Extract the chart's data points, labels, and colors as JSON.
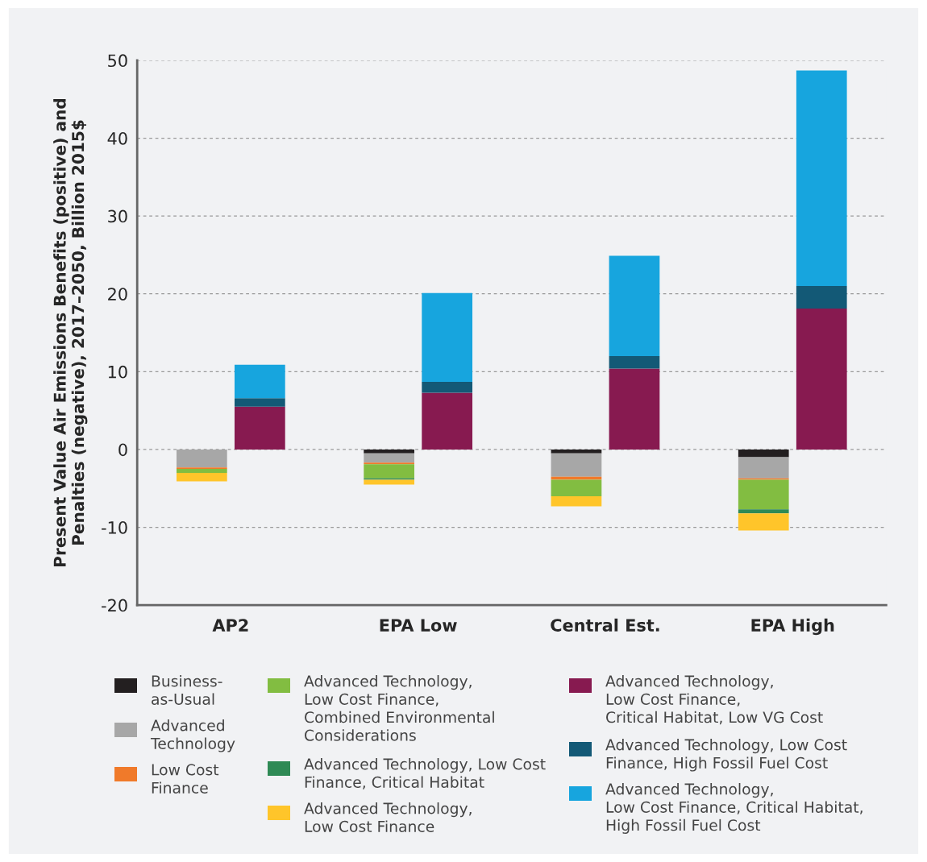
{
  "chart_data": {
    "type": "bar",
    "stacked": true,
    "ylabel": "Present Value Air Emissions Benefits (positive) and\nPenalties (negative), 2017–2050, Billion 2015$",
    "categories": [
      "AP2",
      "EPA Low",
      "Central Est.",
      "EPA High"
    ],
    "series": [
      {
        "name": "Business-\nas-Usual",
        "color": "#231f20",
        "values": [
          0,
          -0.5,
          -0.5,
          -1.0
        ]
      },
      {
        "name": "Advanced\nTechnology",
        "color": "#a7a7a7",
        "values": [
          -2.3,
          -1.2,
          -3.0,
          -2.7
        ]
      },
      {
        "name": "Low Cost\nFinance",
        "color": "#f07a2a",
        "values": [
          -0.2,
          -0.2,
          -0.4,
          -0.2
        ]
      },
      {
        "name": "Advanced Technology,\nLow Cost Finance,\nCombined Environmental\nConsiderations",
        "color": "#82bd41",
        "values": [
          -0.5,
          -1.8,
          -2.1,
          -3.8
        ]
      },
      {
        "name": "Advanced Technology, Low Cost\nFinance, Critical Habitat",
        "color": "#2f8a55",
        "values": [
          0,
          -0.2,
          0,
          -0.5
        ]
      },
      {
        "name": "Advanced Technology,\nLow Cost Finance",
        "color": "#ffc52a",
        "values": [
          -1.1,
          -0.6,
          -1.3,
          -2.2
        ]
      },
      {
        "name": "Advanced Technology,\nLow Cost Finance,\nCritical Habitat, Low VG Cost",
        "color": "#871a50",
        "values": [
          5.5,
          7.3,
          10.4,
          18.1
        ]
      },
      {
        "name": "Advanced Technology, Low Cost\nFinance, High Fossil Fuel Cost",
        "color": "#135976",
        "values": [
          1.1,
          1.4,
          1.6,
          2.9
        ]
      },
      {
        "name": "Advanced Technology,\nLow Cost Finance, Critical Habitat,\nHigh Fossil Fuel Cost",
        "color": "#17a5de",
        "values": [
          4.3,
          11.4,
          12.9,
          27.7
        ]
      }
    ],
    "ylim": [
      -20,
      50
    ],
    "yticks": [
      {
        "value": -20,
        "label": "-20"
      },
      {
        "value": -10,
        "label": "-10"
      },
      0,
      10,
      20,
      30,
      40,
      50
    ],
    "grid": "y",
    "legend": "bottom"
  }
}
